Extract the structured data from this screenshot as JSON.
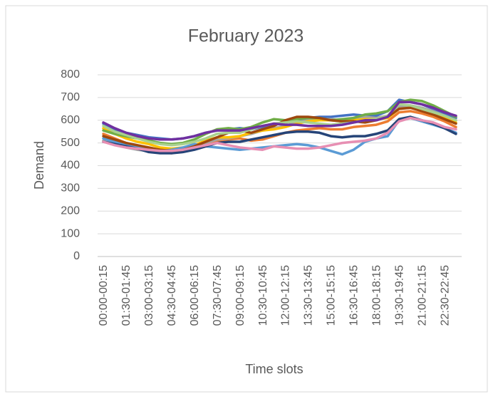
{
  "chart_data": {
    "type": "line",
    "title": "February 2023",
    "x_label": "Time slots",
    "y_label": "Demand",
    "categories": [
      "00:00-00:15",
      null,
      "01:30-01:45",
      null,
      "03:00-03:15",
      null,
      "04:30-04:45",
      null,
      "06:00-06:15",
      null,
      "07:30-07:45",
      null,
      "09:00-09:15",
      null,
      "10:30-10:45",
      null,
      "12:00-12:15",
      null,
      "13:30-13:45",
      null,
      "15:00-15:15",
      null,
      "16:30-16:45",
      null,
      "18:00-18:15",
      null,
      "19:30-19:45",
      null,
      "21:00-21:15",
      null,
      "22:30-22:45",
      null
    ],
    "ylim": [
      0,
      800
    ],
    "yticks": [
      0,
      100,
      200,
      300,
      400,
      500,
      600,
      700,
      800
    ],
    "grid": true,
    "series": [
      {
        "color": "#4472c4",
        "values": [
          585,
          560,
          545,
          535,
          525,
          520,
          515,
          520,
          530,
          545,
          555,
          560,
          565,
          560,
          570,
          580,
          590,
          600,
          610,
          615,
          615,
          620,
          625,
          620,
          620,
          640,
          690,
          680,
          670,
          650,
          630,
          610
        ]
      },
      {
        "color": "#ed7d31",
        "values": [
          540,
          520,
          500,
          485,
          475,
          460,
          455,
          465,
          480,
          495,
          510,
          515,
          520,
          510,
          515,
          530,
          545,
          555,
          560,
          565,
          560,
          560,
          570,
          575,
          580,
          595,
          635,
          640,
          630,
          615,
          595,
          570
        ]
      },
      {
        "color": "#a5a5a5",
        "values": [
          510,
          495,
          480,
          470,
          465,
          460,
          460,
          465,
          480,
          500,
          515,
          520,
          530,
          540,
          555,
          565,
          575,
          590,
          600,
          605,
          605,
          600,
          610,
          615,
          610,
          620,
          660,
          665,
          655,
          640,
          620,
          600
        ]
      },
      {
        "color": "#ffc000",
        "values": [
          565,
          540,
          520,
          505,
          495,
          480,
          475,
          480,
          490,
          510,
          525,
          525,
          530,
          545,
          555,
          560,
          570,
          585,
          595,
          600,
          600,
          595,
          600,
          605,
          605,
          610,
          650,
          655,
          645,
          630,
          615,
          590
        ]
      },
      {
        "color": "#5b9bd5",
        "values": [
          520,
          505,
          490,
          480,
          470,
          465,
          470,
          480,
          495,
          485,
          480,
          475,
          470,
          475,
          480,
          485,
          490,
          495,
          490,
          480,
          465,
          450,
          470,
          505,
          520,
          530,
          600,
          610,
          595,
          580,
          565,
          545
        ]
      },
      {
        "color": "#70ad47",
        "values": [
          555,
          540,
          530,
          520,
          510,
          500,
          495,
          500,
          515,
          540,
          560,
          565,
          560,
          570,
          590,
          605,
          600,
          605,
          610,
          610,
          600,
          605,
          610,
          625,
          630,
          640,
          680,
          690,
          685,
          665,
          640,
          615
        ]
      },
      {
        "color": "#264478",
        "values": [
          505,
          495,
          485,
          475,
          460,
          455,
          455,
          460,
          470,
          485,
          500,
          505,
          505,
          515,
          525,
          535,
          545,
          550,
          550,
          545,
          530,
          525,
          530,
          530,
          540,
          555,
          605,
          615,
          600,
          585,
          565,
          540
        ]
      },
      {
        "color": "#9e480e",
        "values": [
          530,
          515,
          500,
          490,
          480,
          470,
          465,
          470,
          485,
          505,
          525,
          545,
          555,
          545,
          560,
          575,
          600,
          615,
          615,
          610,
          600,
          595,
          595,
          590,
          600,
          615,
          650,
          655,
          640,
          625,
          605,
          585
        ]
      },
      {
        "color": "#e78fb3",
        "values": [
          505,
          490,
          480,
          475,
          470,
          465,
          465,
          470,
          480,
          490,
          500,
          490,
          480,
          475,
          470,
          485,
          480,
          475,
          475,
          480,
          490,
          500,
          505,
          510,
          520,
          545,
          595,
          610,
          600,
          590,
          570,
          560
        ]
      },
      {
        "color": "#a9d18e",
        "values": [
          575,
          550,
          535,
          520,
          505,
          495,
          490,
          495,
          505,
          520,
          540,
          545,
          545,
          560,
          575,
          585,
          590,
          595,
          590,
          585,
          580,
          585,
          590,
          600,
          605,
          620,
          670,
          665,
          650,
          635,
          620,
          600
        ]
      },
      {
        "color": "#7030a0",
        "values": [
          590,
          565,
          545,
          530,
          520,
          515,
          515,
          520,
          530,
          545,
          555,
          555,
          555,
          565,
          575,
          585,
          580,
          580,
          575,
          575,
          575,
          580,
          590,
          600,
          600,
          615,
          680,
          680,
          670,
          655,
          635,
          620
        ]
      }
    ]
  }
}
